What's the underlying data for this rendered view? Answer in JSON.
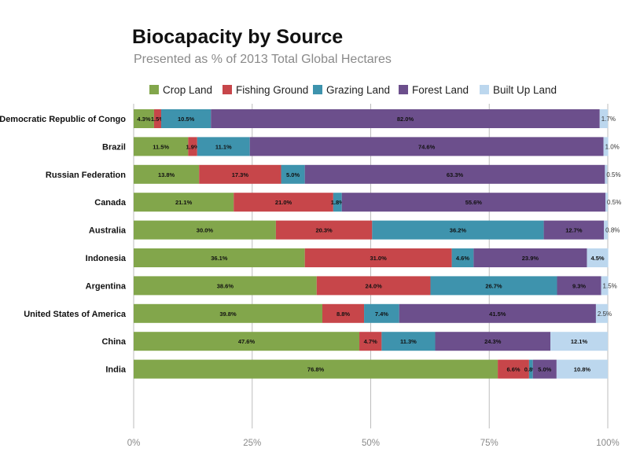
{
  "chart_data": {
    "type": "bar",
    "orientation": "horizontal",
    "stacked": true,
    "title": "Biocapacity by Source",
    "subtitle": "Presented as % of 2013 Total Global Hectares",
    "categories": [
      "Democratic Republic of Congo",
      "Brazil",
      "Russian Federation",
      "Canada",
      "Australia",
      "Indonesia",
      "Argentina",
      "United States of America",
      "China",
      "India"
    ],
    "series": [
      {
        "name": "Crop Land",
        "color": "#82a64b",
        "values": [
          4.3,
          11.5,
          13.8,
          21.1,
          30.0,
          36.1,
          38.6,
          39.8,
          47.6,
          76.8
        ]
      },
      {
        "name": "Fishing Ground",
        "color": "#c7464a",
        "values": [
          1.5,
          1.9,
          17.3,
          21.0,
          20.3,
          31.0,
          24.0,
          8.8,
          4.7,
          6.6
        ]
      },
      {
        "name": "Grazing Land",
        "color": "#3e93ad",
        "values": [
          10.5,
          11.1,
          5.0,
          1.8,
          36.2,
          4.6,
          26.7,
          7.4,
          11.3,
          0.8
        ]
      },
      {
        "name": "Forest Land",
        "color": "#6c4f8c",
        "values": [
          82.0,
          74.6,
          63.3,
          55.6,
          12.7,
          23.9,
          9.3,
          41.5,
          24.3,
          5.0
        ]
      },
      {
        "name": "Built Up Land",
        "color": "#bcd7ee",
        "values": [
          1.7,
          1.0,
          0.5,
          0.5,
          0.8,
          4.5,
          1.5,
          2.5,
          12.1,
          10.8
        ]
      }
    ],
    "segment_labels": [
      [
        "4.3%",
        "1.5%",
        "10.5%",
        "82.0%",
        "1.7%"
      ],
      [
        "11.5%",
        "1.9%",
        "11.1%",
        "74.6%",
        "1.0%"
      ],
      [
        "13.8%",
        "17.3%",
        "5.0%",
        "63.3%",
        "0.5%"
      ],
      [
        "21.1%",
        "21.0%",
        "1.8%",
        "55.6%",
        "0.5%"
      ],
      [
        "30.0%",
        "20.3%",
        "36.2%",
        "12.7%",
        "0.8%"
      ],
      [
        "36.1%",
        "31.0%",
        "4.6%",
        "23.9%",
        "4.5%"
      ],
      [
        "38.6%",
        "24.0%",
        "26.7%",
        "9.3%",
        "1.5%"
      ],
      [
        "39.8%",
        "8.8%",
        "7.4%",
        "41.5%",
        "2.5%"
      ],
      [
        "47.6%",
        "4.7%",
        "11.3%",
        "24.3%",
        "12.1%"
      ],
      [
        "76.8%",
        "6.6%",
        "0.8%",
        "5.0%",
        "10.8%"
      ]
    ],
    "xlim": [
      0,
      100
    ],
    "x_ticks": [
      0,
      25,
      50,
      75,
      100
    ],
    "x_tick_labels": [
      "0%",
      "25%",
      "50%",
      "75%",
      "100%"
    ],
    "grid": "vertical",
    "legend_position": "top"
  }
}
